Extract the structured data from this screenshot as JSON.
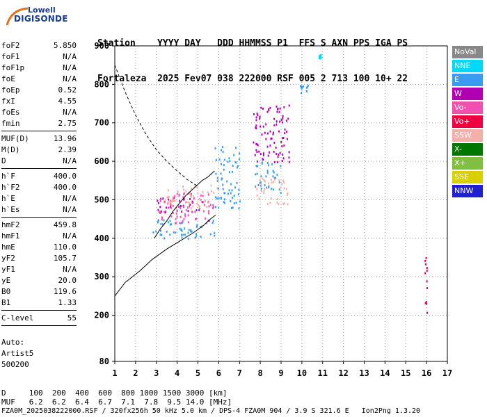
{
  "logo": {
    "top": "Lowell",
    "main": "DIGISONDE",
    "colors": {
      "text": "#1a3d8a",
      "swoosh": "#e07020"
    }
  },
  "header": {
    "row1": "Station    YYYY DAY   DDD HHMMSS P1  FFS S AXN PPS IGA PS",
    "row2": "Fortaleza  2025 Fev07 038 222000 RSF 005 2 713 100 10+ 22"
  },
  "params": [
    {
      "label": "foF2",
      "value": "5.850"
    },
    {
      "label": "foF1",
      "value": "N/A"
    },
    {
      "label": "foF1p",
      "value": "N/A"
    },
    {
      "label": "foE",
      "value": "N/A"
    },
    {
      "label": "foEp",
      "value": "0.52"
    },
    {
      "label": "fxI",
      "value": "4.55"
    },
    {
      "label": "foEs",
      "value": "N/A"
    },
    {
      "label": "fmin",
      "value": "2.75"
    },
    {
      "sep": true
    },
    {
      "label": "MUF(D)",
      "value": "13.96"
    },
    {
      "label": "M(D)",
      "value": "2.39"
    },
    {
      "label": "D",
      "value": "N/A"
    },
    {
      "sep": true
    },
    {
      "label": "h`F",
      "value": "400.0"
    },
    {
      "label": "h`F2",
      "value": "400.0"
    },
    {
      "label": "h`E",
      "value": "N/A"
    },
    {
      "label": "h`Es",
      "value": "N/A"
    },
    {
      "sep": true
    },
    {
      "label": "hmF2",
      "value": "459.8"
    },
    {
      "label": "hmF1",
      "value": "N/A"
    },
    {
      "label": "hmE",
      "value": "110.0"
    },
    {
      "label": "yF2",
      "value": "105.7"
    },
    {
      "label": "yF1",
      "value": "N/A"
    },
    {
      "label": "yE",
      "value": "20.0"
    },
    {
      "label": "B0",
      "value": "119.6"
    },
    {
      "label": "B1",
      "value": "1.33"
    },
    {
      "sep": true
    },
    {
      "label": "C-level",
      "value": "55"
    },
    {
      "sep": true
    }
  ],
  "auto": {
    "line1": "Auto:",
    "line2": "Artist5",
    "line3": "500200"
  },
  "legend": [
    {
      "label": "NoVal",
      "color": "#888888"
    },
    {
      "label": "NNE",
      "color": "#00d8f8"
    },
    {
      "label": "E",
      "color": "#3a9cf0"
    },
    {
      "label": "W",
      "color": "#b000b0"
    },
    {
      "label": "Vo-",
      "color": "#f050b0"
    },
    {
      "label": "Vo+",
      "color": "#f00040"
    },
    {
      "label": "SSW",
      "color": "#f4b0a8"
    },
    {
      "label": "X-",
      "color": "#007800"
    },
    {
      "label": "X+",
      "color": "#80c040"
    },
    {
      "label": "SSE",
      "color": "#d8d000"
    },
    {
      "label": "NNW",
      "color": "#2020d0"
    }
  ],
  "bottom": {
    "d_row": "D     100  200  400  600  800 1000 1500 3000 [km]",
    "muf_row": "MUF   6.2  6.2  6.4  6.7  7.1  7.8  9.5 14.0 [MHz]",
    "footer": "FZA0M_2025038222000.RSF / 320fx256h 50 kHz 5.0 km / DPS-4 FZA0M 904 / 3.9 S 321.6 E   Ion2Png 1.3.20"
  },
  "chart_data": {
    "type": "scatter",
    "title": "",
    "xlabel": "",
    "ylabel": "",
    "xlim": [
      1,
      17
    ],
    "ylim": [
      80,
      900
    ],
    "x_ticks": [
      1,
      2,
      3,
      4,
      5,
      6,
      7,
      8,
      9,
      10,
      11,
      12,
      13,
      14,
      15,
      16,
      17
    ],
    "y_ticks": [
      80,
      200,
      300,
      400,
      500,
      600,
      700,
      800,
      900
    ],
    "grid": "dotted",
    "legend_position": "right",
    "traces": [
      {
        "name": "profile",
        "style": "solid",
        "points": [
          [
            1.0,
            250
          ],
          [
            1.5,
            285
          ],
          [
            2.2,
            315
          ],
          [
            2.8,
            345
          ],
          [
            3.5,
            372
          ],
          [
            4.2,
            395
          ],
          [
            4.8,
            415
          ],
          [
            5.3,
            435
          ],
          [
            5.6,
            450
          ],
          [
            5.85,
            460
          ]
        ]
      },
      {
        "name": "extrapolation",
        "style": "dashed",
        "points": [
          [
            1.0,
            850
          ],
          [
            1.5,
            780
          ],
          [
            2.0,
            720
          ],
          [
            2.5,
            670
          ],
          [
            3.0,
            630
          ],
          [
            3.5,
            600
          ],
          [
            4.0,
            575
          ],
          [
            4.5,
            552
          ],
          [
            5.0,
            535
          ]
        ]
      },
      {
        "name": "leading-edge",
        "style": "solid",
        "points": [
          [
            2.9,
            400
          ],
          [
            3.2,
            425
          ],
          [
            3.5,
            445
          ],
          [
            3.8,
            470
          ],
          [
            4.1,
            490
          ],
          [
            4.4,
            510
          ],
          [
            4.8,
            530
          ],
          [
            5.2,
            550
          ],
          [
            5.5,
            560
          ],
          [
            5.8,
            575
          ]
        ]
      }
    ],
    "clusters": [
      {
        "direction": "E",
        "x": [
          2.8,
          5.9
        ],
        "y": [
          400,
          450
        ]
      },
      {
        "direction": "W",
        "x": [
          3.0,
          5.4
        ],
        "y": [
          470,
          510
        ]
      },
      {
        "direction": "Vo-",
        "x": [
          3.0,
          5.8
        ],
        "y": [
          440,
          520
        ]
      },
      {
        "direction": "SSW",
        "x": [
          3.5,
          6.0
        ],
        "y": [
          480,
          540
        ]
      },
      {
        "direction": "E",
        "x": [
          5.8,
          7.0
        ],
        "y": [
          480,
          640
        ]
      },
      {
        "direction": "W",
        "x": [
          7.6,
          9.4
        ],
        "y": [
          600,
          750
        ]
      },
      {
        "direction": "E",
        "x": [
          7.7,
          9.0
        ],
        "y": [
          520,
          600
        ]
      },
      {
        "direction": "SSW",
        "x": [
          7.8,
          9.3
        ],
        "y": [
          490,
          560
        ]
      },
      {
        "direction": "E",
        "x": [
          9.9,
          10.3
        ],
        "y": [
          780,
          800
        ]
      },
      {
        "direction": "NNE",
        "x": [
          10.8,
          10.9
        ],
        "y": [
          870,
          880
        ]
      },
      {
        "direction": "Vo+",
        "x": [
          15.9,
          16.0
        ],
        "y": [
          190,
          370
        ]
      }
    ]
  }
}
